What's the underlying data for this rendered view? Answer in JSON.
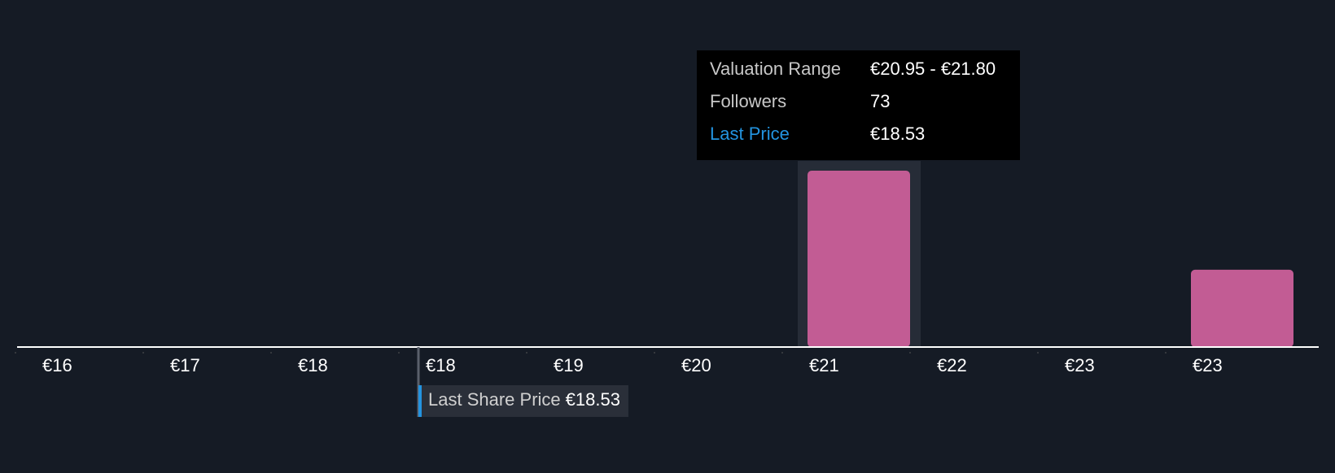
{
  "chart_data": {
    "type": "histogram",
    "bins": [
      15.85,
      16.7,
      17.55,
      18.4,
      19.25,
      20.1,
      20.95,
      21.8,
      22.65,
      23.5,
      24.35
    ],
    "values": [
      0,
      0,
      0,
      0,
      0,
      0,
      73,
      0,
      0,
      32
    ],
    "color": "#c25c94",
    "xticks": [
      {
        "value": 15.85,
        "label": "€16"
      },
      {
        "value": 16.7,
        "label": "€17"
      },
      {
        "value": 17.55,
        "label": "€18"
      },
      {
        "value": 18.4,
        "label": "€18"
      },
      {
        "value": 19.25,
        "label": "€19"
      },
      {
        "value": 20.1,
        "label": "€20"
      },
      {
        "value": 20.95,
        "label": "€21"
      },
      {
        "value": 21.8,
        "label": "€22"
      },
      {
        "value": 22.65,
        "label": "€23"
      },
      {
        "value": 23.5,
        "label": "€23"
      }
    ],
    "last_price": {
      "value": 18.53,
      "label": "€18.53",
      "name": "Last Share Price",
      "color": "#2394e0"
    },
    "tooltip": {
      "bin": 6,
      "range_label": "Valuation Range",
      "range": "€20.95 - €21.80",
      "count_label": "Followers",
      "price_label": "Last Price"
    }
  }
}
